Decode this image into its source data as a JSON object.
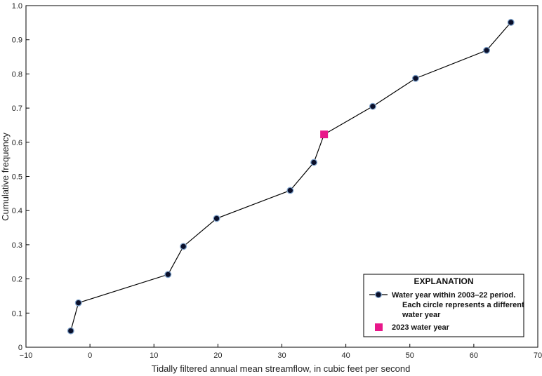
{
  "chart_data": {
    "type": "line",
    "xlabel": "Tidally filtered annual mean streamflow, in cubic feet per second",
    "ylabel": "Cumulative  frequency",
    "xlim": [
      -10,
      70
    ],
    "ylim": [
      0,
      1.0
    ],
    "xticks": [
      -10,
      0,
      10,
      20,
      30,
      40,
      50,
      60,
      70
    ],
    "xtick_labels": [
      "−10",
      "0",
      "10",
      "20",
      "30",
      "40",
      "50",
      "60",
      "70"
    ],
    "yticks": [
      0,
      0.1,
      0.2,
      0.3,
      0.4,
      0.5,
      0.6,
      0.7,
      0.8,
      0.9,
      1.0
    ],
    "ytick_labels": [
      "0",
      "0.1",
      "0.2",
      "0.3",
      "0.4",
      "0.5",
      "0.6",
      "0.7",
      "0.8",
      "0.9",
      "1.0"
    ],
    "grid": false,
    "legend_position": "bottom-right",
    "legend_title": "EXPLANATION",
    "series": [
      {
        "name": "Water year within 2003–22 period. Each circle represents a different water year",
        "legend_lines": [
          "Water year within 2003–22 period.",
          "Each circle represents a different",
          "water year"
        ],
        "marker": "circle",
        "color": "#0a0f2a",
        "edge_color": "#7ea1c9",
        "x": [
          -3.0,
          -1.8,
          12.2,
          14.6,
          19.8,
          31.3,
          35.0,
          36.6,
          44.2,
          50.9,
          62.0,
          65.8
        ],
        "y": [
          0.048,
          0.13,
          0.213,
          0.295,
          0.377,
          0.459,
          0.541,
          0.623,
          0.705,
          0.787,
          0.869,
          0.951
        ]
      },
      {
        "name": "2023 water year",
        "legend_lines": [
          "2023 water year"
        ],
        "marker": "square",
        "color": "#e8178a",
        "x": [
          36.6
        ],
        "y": [
          0.623
        ]
      }
    ]
  }
}
